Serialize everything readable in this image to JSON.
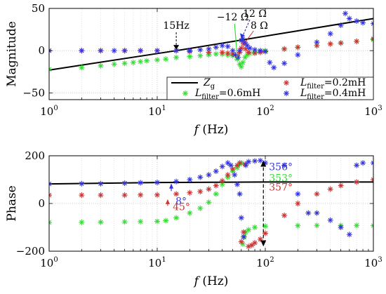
{
  "chart_data": [
    {
      "type": "scatter",
      "xscale": "log",
      "xlim": [
        1,
        1000
      ],
      "ylim": [
        -58,
        50
      ],
      "xlabel": "f (Hz)",
      "ylabel": "Magnitude",
      "grid": true,
      "legend_position": "bottom-right",
      "xticks": [
        "10^0",
        "10^1",
        "10^2",
        "10^3"
      ],
      "yticks": [
        "50",
        "0",
        "-50"
      ],
      "line": {
        "name": "Zg",
        "points": [
          [
            1,
            -23
          ],
          [
            15,
            0
          ],
          [
            1000,
            38
          ]
        ]
      },
      "series": [
        {
          "name": "Lfilter=0.6mH",
          "color": "#33dd33",
          "points": [
            [
              1,
              -22
            ],
            [
              2,
              -20
            ],
            [
              3,
              -18
            ],
            [
              4,
              -16
            ],
            [
              5,
              -15
            ],
            [
              6,
              -14
            ],
            [
              7,
              -13
            ],
            [
              8,
              -12
            ],
            [
              10,
              -11
            ],
            [
              12,
              -10
            ],
            [
              15,
              -8
            ],
            [
              20,
              -7
            ],
            [
              25,
              -6
            ],
            [
              30,
              -5
            ],
            [
              35,
              -4
            ],
            [
              40,
              -4
            ],
            [
              45,
              -5
            ],
            [
              50,
              -6
            ],
            [
              55,
              -10
            ],
            [
              58,
              -16
            ],
            [
              60,
              -19
            ],
            [
              62,
              -14
            ],
            [
              65,
              -8
            ],
            [
              68,
              -5
            ],
            [
              72,
              -3
            ],
            [
              80,
              -2
            ],
            [
              90,
              -1
            ],
            [
              100,
              0
            ],
            [
              150,
              2
            ],
            [
              200,
              4
            ],
            [
              300,
              6
            ],
            [
              400,
              8
            ],
            [
              500,
              9
            ],
            [
              700,
              11
            ],
            [
              1000,
              13
            ]
          ]
        },
        {
          "name": "Lfilter=0.2mH",
          "color": "#cc3333",
          "points": [
            [
              1,
              0
            ],
            [
              2,
              0
            ],
            [
              3,
              0
            ],
            [
              5,
              0
            ],
            [
              7,
              0
            ],
            [
              10,
              0
            ],
            [
              15,
              0
            ],
            [
              20,
              -1
            ],
            [
              30,
              -2
            ],
            [
              40,
              -2
            ],
            [
              45,
              -3
            ],
            [
              50,
              -4
            ],
            [
              55,
              -6
            ],
            [
              58,
              -2
            ],
            [
              60,
              3
            ],
            [
              63,
              8
            ],
            [
              66,
              2
            ],
            [
              70,
              -2
            ],
            [
              80,
              -3
            ],
            [
              90,
              -2
            ],
            [
              100,
              -1
            ],
            [
              150,
              2
            ],
            [
              200,
              4
            ],
            [
              300,
              6
            ],
            [
              400,
              8
            ],
            [
              500,
              9
            ],
            [
              700,
              11
            ],
            [
              1000,
              14
            ]
          ]
        },
        {
          "name": "Lfilter=0.4mH",
          "color": "#3333dd",
          "points": [
            [
              1,
              0
            ],
            [
              2,
              0
            ],
            [
              3,
              0
            ],
            [
              4,
              0
            ],
            [
              5,
              0
            ],
            [
              7,
              0
            ],
            [
              10,
              0
            ],
            [
              15,
              0
            ],
            [
              20,
              0
            ],
            [
              25,
              1
            ],
            [
              30,
              2
            ],
            [
              35,
              4
            ],
            [
              40,
              6
            ],
            [
              45,
              5
            ],
            [
              50,
              0
            ],
            [
              53,
              -5
            ],
            [
              56,
              -8
            ],
            [
              58,
              0
            ],
            [
              60,
              12
            ],
            [
              62,
              14
            ],
            [
              65,
              10
            ],
            [
              68,
              6
            ],
            [
              72,
              3
            ],
            [
              80,
              1
            ],
            [
              90,
              0
            ],
            [
              100,
              -1
            ],
            [
              110,
              -14
            ],
            [
              120,
              -20
            ],
            [
              150,
              -15
            ],
            [
              200,
              -5
            ],
            [
              300,
              10
            ],
            [
              400,
              20
            ],
            [
              500,
              30
            ],
            [
              550,
              44
            ],
            [
              600,
              38
            ],
            [
              700,
              35
            ],
            [
              800,
              33
            ],
            [
              1000,
              32
            ]
          ]
        }
      ],
      "annotations": [
        {
          "text": "15Hz",
          "color": "#000000"
        },
        {
          "text": "−12 Ω",
          "color": "#000000"
        },
        {
          "text": "12 Ω",
          "color": "#000000"
        },
        {
          "text": "8 Ω",
          "color": "#000000"
        }
      ]
    },
    {
      "type": "scatter",
      "xscale": "log",
      "xlim": [
        1,
        1000
      ],
      "ylim": [
        -200,
        200
      ],
      "xlabel": "f (Hz)",
      "ylabel": "Phase",
      "grid": true,
      "xticks": [
        "10^0",
        "10^1",
        "10^2",
        "10^3"
      ],
      "yticks": [
        "200",
        "0",
        "-200"
      ],
      "line": {
        "name": "Zg",
        "points": [
          [
            1,
            82
          ],
          [
            10,
            88
          ],
          [
            100,
            90
          ],
          [
            1000,
            90
          ]
        ]
      },
      "series": [
        {
          "name": "Lfilter=0.6mH",
          "color": "#33dd33",
          "points": [
            [
              1,
              -80
            ],
            [
              2,
              -79
            ],
            [
              3,
              -78
            ],
            [
              5,
              -77
            ],
            [
              7,
              -76
            ],
            [
              10,
              -75
            ],
            [
              12,
              -72
            ],
            [
              15,
              -60
            ],
            [
              20,
              -40
            ],
            [
              25,
              -20
            ],
            [
              30,
              5
            ],
            [
              35,
              40
            ],
            [
              40,
              80
            ],
            [
              45,
              110
            ],
            [
              50,
              135
            ],
            [
              55,
              150
            ],
            [
              58,
              165
            ],
            [
              60,
              170
            ],
            [
              62,
              -170
            ],
            [
              64,
              -140
            ],
            [
              66,
              -120
            ],
            [
              70,
              -110
            ],
            [
              80,
              -100
            ],
            [
              100,
              -95
            ],
            [
              200,
              -93
            ],
            [
              300,
              -92
            ],
            [
              500,
              -92
            ],
            [
              700,
              -92
            ],
            [
              1000,
              -93
            ]
          ]
        },
        {
          "name": "Lfilter=0.2mH",
          "color": "#cc3333",
          "points": [
            [
              1,
              35
            ],
            [
              2,
              35
            ],
            [
              3,
              35
            ],
            [
              5,
              35
            ],
            [
              7,
              36
            ],
            [
              10,
              36
            ],
            [
              15,
              40
            ],
            [
              20,
              45
            ],
            [
              25,
              50
            ],
            [
              30,
              60
            ],
            [
              35,
              75
            ],
            [
              40,
              95
            ],
            [
              45,
              120
            ],
            [
              50,
              145
            ],
            [
              55,
              160
            ],
            [
              58,
              170
            ],
            [
              60,
              -160
            ],
            [
              63,
              -120
            ],
            [
              65,
              165
            ],
            [
              70,
              -180
            ],
            [
              75,
              -175
            ],
            [
              80,
              -165
            ],
            [
              90,
              -150
            ],
            [
              100,
              -125
            ],
            [
              150,
              -50
            ],
            [
              200,
              0
            ],
            [
              300,
              40
            ],
            [
              400,
              60
            ],
            [
              500,
              75
            ],
            [
              700,
              90
            ],
            [
              1000,
              100
            ]
          ]
        },
        {
          "name": "Lfilter=0.4mH",
          "color": "#3333dd",
          "points": [
            [
              1,
              82
            ],
            [
              2,
              83
            ],
            [
              3,
              83
            ],
            [
              5,
              85
            ],
            [
              7,
              87
            ],
            [
              10,
              88
            ],
            [
              15,
              92
            ],
            [
              20,
              100
            ],
            [
              25,
              110
            ],
            [
              30,
              120
            ],
            [
              35,
              135
            ],
            [
              40,
              155
            ],
            [
              45,
              170
            ],
            [
              48,
              160
            ],
            [
              52,
              120
            ],
            [
              55,
              80
            ],
            [
              58,
              40
            ],
            [
              60,
              -60
            ],
            [
              63,
              -140
            ],
            [
              66,
              160
            ],
            [
              70,
              175
            ],
            [
              80,
              178
            ],
            [
              90,
              180
            ],
            [
              100,
              170
            ],
            [
              150,
              160
            ],
            [
              200,
              40
            ],
            [
              250,
              -40
            ],
            [
              300,
              -40
            ],
            [
              400,
              -70
            ],
            [
              500,
              -100
            ],
            [
              600,
              -130
            ],
            [
              700,
              160
            ],
            [
              800,
              170
            ],
            [
              1000,
              170
            ]
          ]
        }
      ],
      "annotations": [
        {
          "text": "356°",
          "color": "#3333dd"
        },
        {
          "text": "353°",
          "color": "#33dd33"
        },
        {
          "text": "357°",
          "color": "#cc3333"
        },
        {
          "text": "8°",
          "color": "#3333dd"
        },
        {
          "text": "45°",
          "color": "#cc3333"
        }
      ]
    }
  ],
  "legend": {
    "zg_main": "Z",
    "zg_sub": "g",
    "l_main": "L",
    "l_sub": "filter",
    "items": [
      {
        "value": "=0.6mH",
        "color": "#33dd33"
      },
      {
        "value": "=0.2mH",
        "color": "#cc3333"
      },
      {
        "value": "=0.4mH",
        "color": "#3333dd"
      }
    ]
  },
  "axes_text": {
    "xlabel_italic": "f",
    "xlabel_unit": "(Hz)",
    "xtick_base": "10",
    "xtick_exps": [
      "0",
      "1",
      "2",
      "3"
    ]
  }
}
